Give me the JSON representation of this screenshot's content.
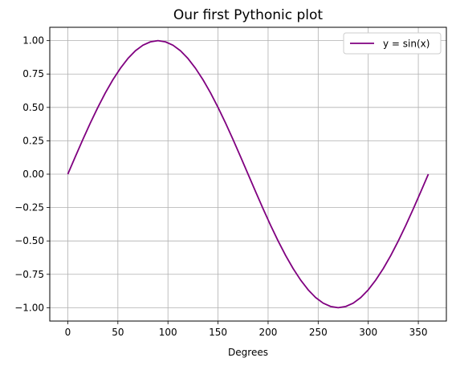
{
  "chart_data": {
    "type": "line",
    "title": "Our first Pythonic plot",
    "xlabel": "Degrees",
    "ylabel": "",
    "xlim": [
      -18,
      378
    ],
    "ylim": [
      -1.1,
      1.1
    ],
    "xticks": [
      0,
      50,
      100,
      150,
      200,
      250,
      300,
      350
    ],
    "yticks": [
      -1.0,
      -0.75,
      -0.5,
      -0.25,
      0.0,
      0.25,
      0.5,
      0.75,
      1.0
    ],
    "xtick_labels": [
      "0",
      "50",
      "100",
      "150",
      "200",
      "250",
      "300",
      "350"
    ],
    "ytick_labels": [
      "−1.00",
      "−0.75",
      "−0.50",
      "−0.25",
      "0.00",
      "0.25",
      "0.50",
      "0.75",
      "1.00"
    ],
    "grid": true,
    "legend_position": "top-right",
    "series": [
      {
        "name": "y = sin(x)",
        "color": "#800080",
        "x": [
          0,
          7.5,
          15,
          22.5,
          30,
          37.5,
          45,
          52.5,
          60,
          67.5,
          75,
          82.5,
          90,
          97.5,
          105,
          112.5,
          120,
          127.5,
          135,
          142.5,
          150,
          157.5,
          165,
          172.5,
          180,
          187.5,
          195,
          202.5,
          210,
          217.5,
          225,
          232.5,
          240,
          247.5,
          255,
          262.5,
          270,
          277.5,
          285,
          292.5,
          300,
          307.5,
          315,
          322.5,
          330,
          337.5,
          345,
          352.5,
          360
        ],
        "y": [
          0.0,
          0.131,
          0.259,
          0.383,
          0.5,
          0.609,
          0.707,
          0.793,
          0.866,
          0.924,
          0.966,
          0.991,
          1.0,
          0.991,
          0.966,
          0.924,
          0.866,
          0.793,
          0.707,
          0.609,
          0.5,
          0.383,
          0.259,
          0.131,
          0.0,
          -0.131,
          -0.259,
          -0.383,
          -0.5,
          -0.609,
          -0.707,
          -0.793,
          -0.866,
          -0.924,
          -0.966,
          -0.991,
          -1.0,
          -0.991,
          -0.966,
          -0.924,
          -0.866,
          -0.793,
          -0.707,
          -0.609,
          -0.5,
          -0.383,
          -0.259,
          -0.131,
          0.0
        ]
      }
    ]
  }
}
